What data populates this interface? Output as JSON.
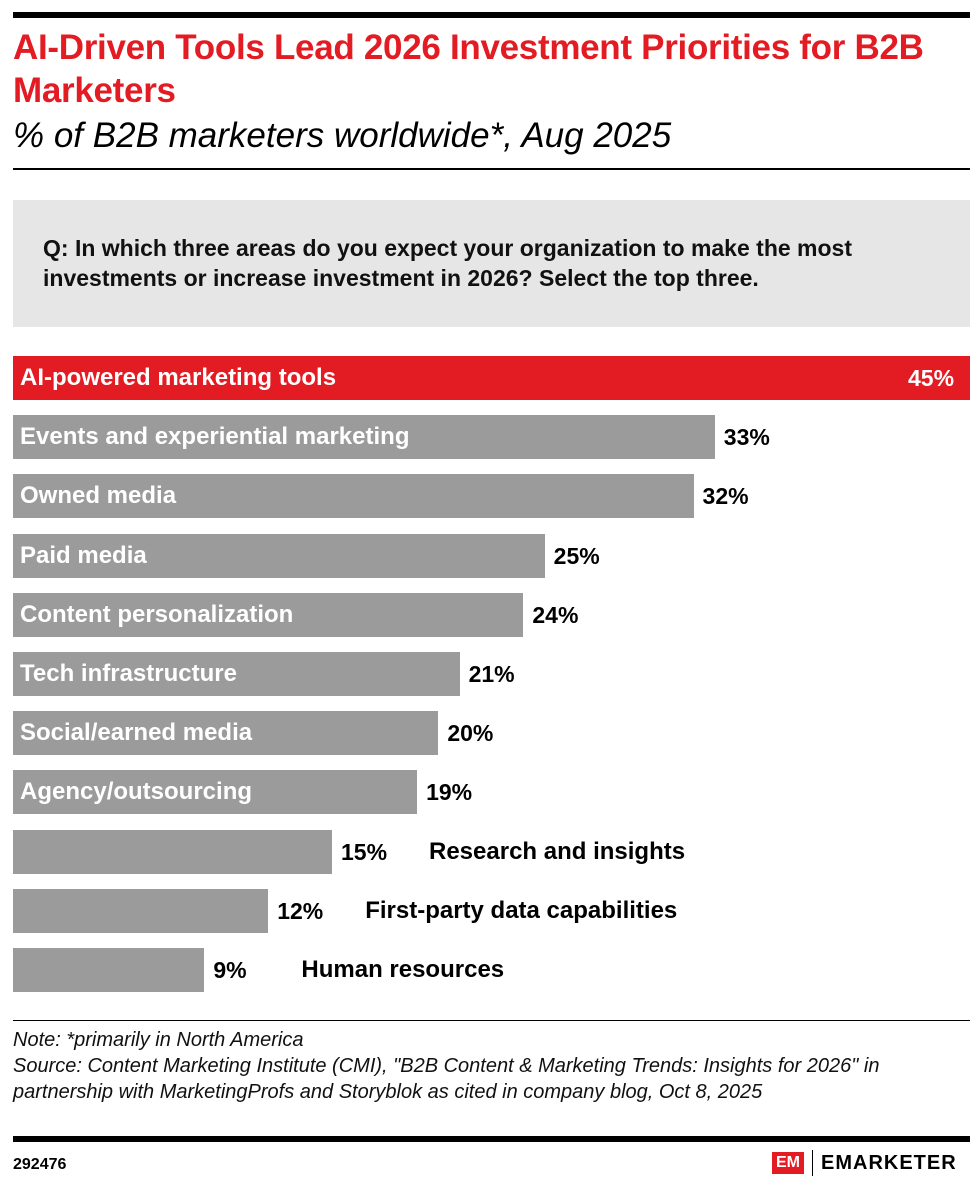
{
  "title": "AI-Driven Tools Lead 2026 Investment Priorities for B2B Marketers",
  "subtitle": "% of B2B marketers worldwide*, Aug 2025",
  "question": "Q: In which three areas do you expect your organization to make the most investments or increase investment in 2026? Select the top three.",
  "chart_data": {
    "type": "bar",
    "orientation": "horizontal",
    "categories": [
      "AI-powered marketing tools",
      "Events and experiential marketing",
      "Owned media",
      "Paid media",
      "Content personalization",
      "Tech infrastructure",
      "Social/earned media",
      "Agency/outsourcing",
      "Research and insights",
      "First-party data capabilities",
      "Human resources"
    ],
    "values": [
      45,
      33,
      32,
      25,
      24,
      21,
      20,
      19,
      15,
      12,
      9
    ],
    "value_labels": [
      "45%",
      "33%",
      "32%",
      "25%",
      "24%",
      "21%",
      "20%",
      "19%",
      "15%",
      "12%",
      "9%"
    ],
    "unit": "%",
    "xlim": [
      0,
      45
    ],
    "grid": false,
    "colors": {
      "highlight": "#e31b23",
      "default": "#9b9b9b"
    }
  },
  "note": "Note: *primarily in North America",
  "source": "Source: Content Marketing Institute (CMI), \"B2B Content & Marketing Trends: Insights for 2026\" in partnership with MarketingProfs and Storyblok as cited in company blog, Oct 8, 2025",
  "chart_id": "292476",
  "logo": {
    "mark": "EM",
    "name": "EMARKETER"
  }
}
